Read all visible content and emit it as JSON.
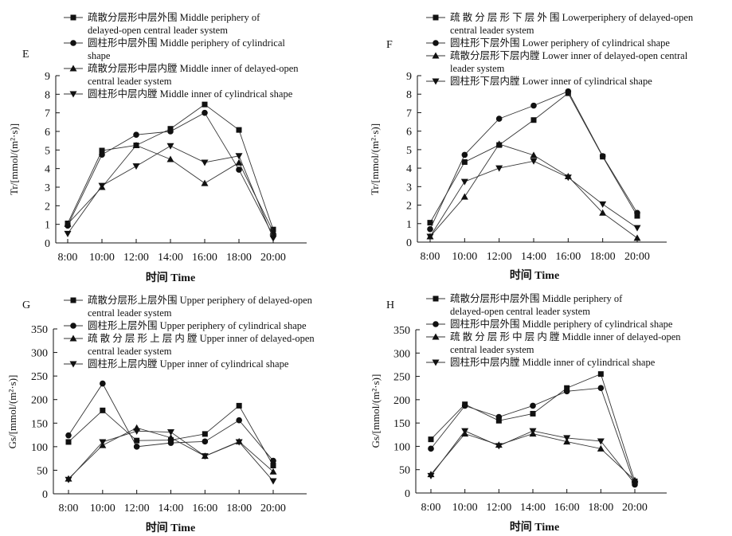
{
  "x_axis_label": "时间 Time",
  "chart_data": [
    {
      "type": "line",
      "panel_label": "E",
      "ylabel": "Tr/[mmol/(m²·s)]",
      "xlabel": "时间 Time",
      "categories": [
        "8:00",
        "10:00",
        "12:00",
        "14:00",
        "16:00",
        "18:00",
        "20:00"
      ],
      "ylim": [
        0,
        9
      ],
      "yticks": [
        0,
        1,
        2,
        3,
        4,
        5,
        6,
        7,
        8,
        9
      ],
      "grid": false,
      "legend_position": "top-left",
      "series": [
        {
          "name": "疏散分层形中层外围 Middle periphery of delayed-open central leader system",
          "legend_lines": [
            "疏散分层形中层外围 Middle periphery of",
            "delayed-open central leader system"
          ],
          "marker": "square",
          "values": [
            1.05,
            4.97,
            5.25,
            6.14,
            7.45,
            6.08,
            0.72
          ]
        },
        {
          "name": "圆柱形中层外围 Middle periphery of cylindrical shape",
          "legend_lines": [
            "圆柱形中层外围 Middle periphery of cylindrical",
            "shape"
          ],
          "marker": "circle",
          "values": [
            0.93,
            4.75,
            5.82,
            6.0,
            7.0,
            3.94,
            0.38
          ]
        },
        {
          "name": "疏散分层形中层内膛 Middle inner of delayed-open central leader system",
          "legend_lines": [
            "疏散分层形中层内膛 Middle inner of delayed-open",
            "central leader system"
          ],
          "marker": "triangle-up",
          "values": [
            1.02,
            3.0,
            5.25,
            4.5,
            3.21,
            4.32,
            0.6
          ]
        },
        {
          "name": "圆柱形中层内膛 Middle inner of cylindrical shape",
          "legend_lines": [
            "圆柱形中层内膛 Middle inner of cylindrical shape"
          ],
          "marker": "triangle-down",
          "values": [
            0.5,
            3.08,
            4.13,
            5.22,
            4.33,
            4.68,
            0.25
          ]
        }
      ]
    },
    {
      "type": "line",
      "panel_label": "F",
      "ylabel": "Tr/[mmol/(m²·s)]",
      "xlabel": "时间 Time",
      "categories": [
        "8:00",
        "10:00",
        "12:00",
        "14:00",
        "16:00",
        "18:00",
        "20:00"
      ],
      "ylim": [
        0,
        9
      ],
      "yticks": [
        0,
        1,
        2,
        3,
        4,
        5,
        6,
        7,
        8,
        9
      ],
      "grid": false,
      "legend_position": "top-left",
      "series": [
        {
          "name": "疏散分层形下层外围 Lowerperiphery of delayed-open central leader system",
          "legend_lines": [
            "疏 散 分 层 形 下 层 外 围  Lowerperiphery of delayed-open",
            "central leader system"
          ],
          "marker": "square",
          "values": [
            1.05,
            4.33,
            5.25,
            6.6,
            8.05,
            4.62,
            1.42
          ]
        },
        {
          "name": "圆柱形下层外围 Lower periphery of cylindrical shape",
          "legend_lines": [
            "圆柱形下层外围 Lower periphery of cylindrical shape"
          ],
          "marker": "circle",
          "values": [
            0.7,
            4.72,
            6.67,
            7.38,
            8.15,
            4.65,
            1.58
          ]
        },
        {
          "name": "疏散分层形下层内膛 Lower inner of delayed-open central leader system",
          "legend_lines": [
            "疏散分层形下层内膛 Lower inner of delayed-open central",
            "leader system"
          ],
          "marker": "triangle-up",
          "values": [
            0.3,
            2.45,
            5.3,
            4.7,
            3.55,
            1.58,
            0.22
          ]
        },
        {
          "name": "圆柱形下层内膛 Lower inner of cylindrical shape",
          "legend_lines": [
            "圆柱形下层内膛 Lower inner of cylindrical shape"
          ],
          "marker": "triangle-down",
          "values": [
            0.3,
            3.27,
            4.0,
            4.38,
            3.5,
            2.05,
            0.77
          ]
        }
      ]
    },
    {
      "type": "line",
      "panel_label": "G",
      "ylabel": "Gs/[mmol/(m²·s)]",
      "xlabel": "时间 Time",
      "categories": [
        "8:00",
        "10:00",
        "12:00",
        "14:00",
        "16:00",
        "18:00",
        "20:00"
      ],
      "ylim": [
        0,
        350
      ],
      "yticks": [
        0,
        50,
        100,
        150,
        200,
        250,
        300,
        350
      ],
      "grid": false,
      "legend_position": "top-left",
      "series": [
        {
          "name": "疏散分层形上层外围 Upper periphery of delayed-open central leader system",
          "legend_lines": [
            "疏散分层形上层外围 Upper periphery of delayed-open",
            "central leader system"
          ],
          "marker": "square",
          "values": [
            110,
            177,
            113,
            114,
            127,
            187,
            60
          ]
        },
        {
          "name": "圆柱形上层外围 Upper periphery of cylindrical shape",
          "legend_lines": [
            "圆柱形上层外围 Upper periphery of cylindrical shape"
          ],
          "marker": "circle",
          "values": [
            124,
            234,
            100,
            108,
            111,
            156,
            70
          ]
        },
        {
          "name": "疏散分层形上层内膛 Upper inner of delayed-open central leader system",
          "legend_lines": [
            "疏 散 分 层 形 上 层 内 膛  Upper inner of delayed-open",
            "central leader system"
          ],
          "marker": "triangle-up",
          "values": [
            32,
            103,
            140,
            119,
            80,
            111,
            47
          ]
        },
        {
          "name": "圆柱形上层内膛 Upper inner of cylindrical shape",
          "legend_lines": [
            "圆柱形上层内膛 Upper inner of cylindrical shape"
          ],
          "marker": "triangle-down",
          "values": [
            30,
            110,
            133,
            131,
            80,
            110,
            27
          ]
        }
      ]
    },
    {
      "type": "line",
      "panel_label": "H",
      "ylabel": "Gs/[mmol/(m²·s)]",
      "xlabel": "时间 Time",
      "categories": [
        "8:00",
        "10:00",
        "12:00",
        "14:00",
        "16:00",
        "18:00",
        "20:00"
      ],
      "ylim": [
        0,
        350
      ],
      "yticks": [
        0,
        50,
        100,
        150,
        200,
        250,
        300,
        350
      ],
      "grid": false,
      "legend_position": "top-left",
      "series": [
        {
          "name": "疏散分层形中层外围 Middle periphery of delayed-open central leader system",
          "legend_lines": [
            "疏散分层形中层外围 Middle periphery of",
            "delayed-open central leader system"
          ],
          "marker": "square",
          "values": [
            115,
            190,
            155,
            170,
            225,
            255,
            25
          ]
        },
        {
          "name": "圆柱形中层外围 Middle periphery of cylindrical shape",
          "legend_lines": [
            "圆柱形中层外围 Middle periphery of cylindrical shape"
          ],
          "marker": "circle",
          "values": [
            95,
            187,
            163,
            187,
            218,
            225,
            18
          ]
        },
        {
          "name": "疏散分层形中层内膛 Middle inner of delayed-open central leader system",
          "legend_lines": [
            "疏 散 分 层 形 中 层 内 膛  Middle inner of delayed-open",
            "central leader system"
          ],
          "marker": "triangle-up",
          "values": [
            40,
            127,
            103,
            127,
            110,
            95,
            27
          ]
        },
        {
          "name": "圆柱形中层内膛 Middle inner of cylindrical shape",
          "legend_lines": [
            "圆柱形中层内膛 Middle inner of cylindrical shape"
          ],
          "marker": "triangle-down",
          "values": [
            37,
            133,
            101,
            133,
            118,
            111,
            20
          ]
        }
      ]
    }
  ]
}
